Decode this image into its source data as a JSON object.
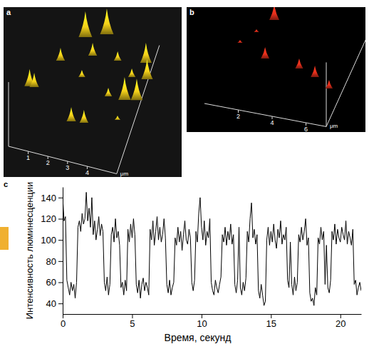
{
  "chart_data": [
    {
      "type": "3d-peaks",
      "label": "a",
      "color": "#f5d21a",
      "xlim": [
        0,
        5.5
      ],
      "ylim": [
        0,
        5
      ],
      "xticks": [
        1,
        2,
        3,
        4
      ],
      "x_label": "μm",
      "x": [
        1.9,
        2.86,
        2.53,
        1.1,
        3.78,
        5.14,
        0.05,
        0.28,
        2.36,
        4.7,
        5.45,
        3.9,
        4.72,
        5.29,
        2.55,
        3.17,
        4.7
      ],
      "y": [
        4.62,
        4.92,
        4.02,
        3.55,
        4.07,
        4.25,
        2.35,
        2.36,
        3.15,
        3.61,
        3.67,
        2.7,
        2.72,
        2.83,
        1.47,
        1.53,
        1.94
      ],
      "z": [
        36,
        36,
        18,
        18,
        13,
        28,
        24,
        20,
        10,
        12,
        28,
        12,
        32,
        30,
        20,
        18,
        6
      ]
    },
    {
      "type": "3d-peaks",
      "label": "b",
      "color": "#e8301c",
      "xlim": [
        0,
        7.2
      ],
      "ylim": [
        0,
        6
      ],
      "xticks": [
        2,
        4,
        6
      ],
      "x_label": "μm",
      "x": [
        1.74,
        1.07,
        2.19,
        4.29,
        5.36,
        6.41,
        0.44
      ],
      "y": [
        5.67,
        4.76,
        3.31,
        3.11,
        2.78,
        2.27,
        3.95
      ],
      "z": [
        22,
        4,
        16,
        14,
        16,
        12,
        4
      ]
    },
    {
      "type": "line",
      "label": "c",
      "color": "#000000",
      "xlabel": "Время, секунд",
      "ylabel": "Интенсивность люминесценции",
      "xlim": [
        0,
        21.5
      ],
      "ylim": [
        30,
        150
      ],
      "xticks": [
        0,
        5,
        10,
        15,
        20
      ],
      "yticks": [
        40,
        60,
        80,
        100,
        120,
        140
      ],
      "x": [
        0,
        0.1,
        0.2,
        0.3,
        0.4,
        0.5,
        0.6,
        0.7,
        0.8,
        0.9,
        1,
        1.1,
        1.2,
        1.3,
        1.4,
        1.5,
        1.6,
        1.7,
        1.8,
        1.9,
        2,
        2.1,
        2.2,
        2.3,
        2.4,
        2.5,
        2.6,
        2.7,
        2.8,
        2.9,
        3,
        3.1,
        3.2,
        3.3,
        3.4,
        3.5,
        3.6,
        3.7,
        3.8,
        3.9,
        4,
        4.1,
        4.2,
        4.3,
        4.4,
        4.5,
        4.6,
        4.7,
        4.8,
        4.9,
        5,
        5.1,
        5.2,
        5.3,
        5.4,
        5.5,
        5.6,
        5.7,
        5.8,
        5.9,
        6,
        6.1,
        6.2,
        6.3,
        6.4,
        6.5,
        6.6,
        6.7,
        6.8,
        6.9,
        7,
        7.1,
        7.2,
        7.3,
        7.4,
        7.5,
        7.6,
        7.7,
        7.8,
        7.9,
        8,
        8.1,
        8.2,
        8.3,
        8.4,
        8.5,
        8.6,
        8.7,
        8.8,
        8.9,
        9,
        9.1,
        9.2,
        9.3,
        9.4,
        9.5,
        9.6,
        9.7,
        9.8,
        9.9,
        10,
        10.1,
        10.2,
        10.3,
        10.4,
        10.5,
        10.6,
        10.7,
        10.8,
        10.9,
        11,
        11.1,
        11.2,
        11.3,
        11.4,
        11.5,
        11.6,
        11.7,
        11.8,
        11.9,
        12,
        12.1,
        12.2,
        12.3,
        12.4,
        12.5,
        12.6,
        12.7,
        12.8,
        12.9,
        13,
        13.1,
        13.2,
        13.3,
        13.4,
        13.5,
        13.6,
        13.7,
        13.8,
        13.9,
        14,
        14.1,
        14.2,
        14.3,
        14.4,
        14.5,
        14.6,
        14.7,
        14.8,
        14.9,
        15,
        15.1,
        15.2,
        15.3,
        15.4,
        15.5,
        15.6,
        15.7,
        15.8,
        15.9,
        16,
        16.1,
        16.2,
        16.3,
        16.4,
        16.5,
        16.6,
        16.7,
        16.8,
        16.9,
        17,
        17.1,
        17.2,
        17.3,
        17.4,
        17.5,
        17.6,
        17.7,
        17.8,
        17.9,
        18,
        18.1,
        18.2,
        18.3,
        18.4,
        18.5,
        18.6,
        18.7,
        18.8,
        18.9,
        19,
        19.1,
        19.2,
        19.3,
        19.4,
        19.5,
        19.6,
        19.7,
        19.8,
        19.9,
        20,
        20.1,
        20.2,
        20.3,
        20.4,
        20.5,
        20.6,
        20.7,
        20.8,
        20.9,
        21,
        21.1,
        21.2,
        21.3,
        21.4,
        21.5
      ],
      "values": [
        140,
        118,
        122,
        62,
        55,
        48,
        60,
        52,
        58,
        45,
        60,
        112,
        118,
        108,
        125,
        115,
        120,
        145,
        118,
        130,
        112,
        140,
        105,
        118,
        100,
        110,
        122,
        104,
        115,
        108,
        60,
        52,
        65,
        48,
        58,
        105,
        112,
        98,
        120,
        102,
        108,
        95,
        55,
        60,
        48,
        62,
        52,
        110,
        98,
        115,
        102,
        120,
        105,
        58,
        50,
        62,
        45,
        58,
        64,
        52,
        60,
        55,
        48,
        110,
        100,
        118,
        95,
        108,
        122,
        100,
        112,
        98,
        105,
        120,
        102,
        58,
        50,
        62,
        48,
        55,
        60,
        102,
        95,
        112,
        98,
        108,
        90,
        105,
        118,
        100,
        96,
        110,
        102,
        60,
        52,
        62,
        108,
        98,
        125,
        140,
        112,
        100,
        118,
        95,
        108,
        102,
        120,
        60,
        52,
        48,
        62,
        55,
        50,
        58,
        65,
        105,
        98,
        112,
        95,
        108,
        100,
        115,
        96,
        105,
        58,
        50,
        62,
        112,
        55,
        48,
        60,
        52,
        64,
        108,
        98,
        120,
        135,
        102,
        110,
        96,
        105,
        52,
        45,
        58,
        48,
        38,
        42,
        100,
        112,
        95,
        108,
        98,
        115,
        100,
        92,
        110,
        102,
        118,
        96,
        105,
        100,
        112,
        62,
        55,
        98,
        58,
        48,
        65,
        52,
        60,
        105,
        98,
        112,
        100,
        108,
        120,
        95,
        102,
        50,
        42,
        45,
        38,
        55,
        48,
        102,
        96,
        112,
        100,
        108,
        58,
        95,
        55,
        50,
        62,
        108,
        100,
        115,
        96,
        110,
        102,
        98,
        112,
        105,
        100,
        118,
        96,
        108,
        102,
        95,
        110,
        58,
        62,
        48,
        55,
        60,
        52
      ]
    }
  ]
}
